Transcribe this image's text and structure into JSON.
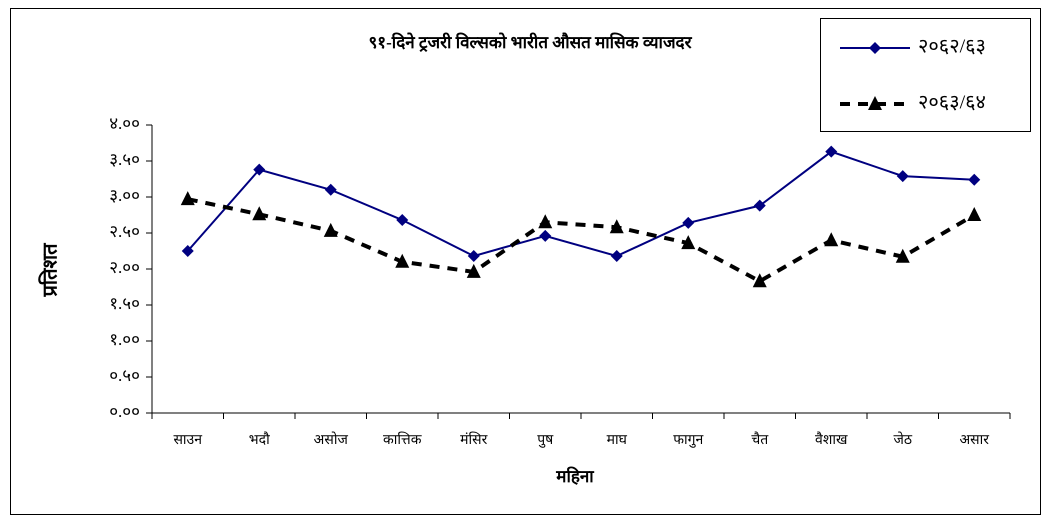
{
  "chart_data": {
    "type": "line",
    "title": "९१-दिने ट्रजरी विल्सको भारीत औसत मासिक व्याजदर",
    "x_label": "महिना",
    "y_label": "प्रतिशत",
    "categories": [
      "साउन",
      "भदौ",
      "असोज",
      "कात्तिक",
      "मंसिर",
      "पुष",
      "माघ",
      "फागुन",
      "चैत",
      "वैशाख",
      "जेठ",
      "असार"
    ],
    "series": [
      {
        "name": "२०६२/६३",
        "color": "#000080",
        "marker": "diamond",
        "dash": false,
        "values": [
          2.25,
          3.38,
          3.1,
          2.68,
          2.18,
          2.46,
          2.18,
          2.64,
          2.88,
          3.63,
          3.29,
          3.24
        ]
      },
      {
        "name": "२०६३/६४",
        "color": "#000000",
        "marker": "triangle",
        "dash": true,
        "values": [
          2.97,
          2.76,
          2.53,
          2.1,
          1.96,
          2.65,
          2.58,
          2.36,
          1.83,
          2.4,
          2.17,
          2.75
        ]
      }
    ],
    "ylim": [
      0,
      4
    ],
    "yticks": [
      {
        "value": 0,
        "label": "०.००"
      },
      {
        "value": 0.5,
        "label": "०.५०"
      },
      {
        "value": 1,
        "label": "१.००"
      },
      {
        "value": 1.5,
        "label": "१.५०"
      },
      {
        "value": 2,
        "label": "२.००"
      },
      {
        "value": 2.5,
        "label": "२.५०"
      },
      {
        "value": 3,
        "label": "३.००"
      },
      {
        "value": 3.5,
        "label": "३.५०"
      },
      {
        "value": 4,
        "label": "४.००"
      }
    ],
    "grid": false,
    "legend": "top-right"
  }
}
